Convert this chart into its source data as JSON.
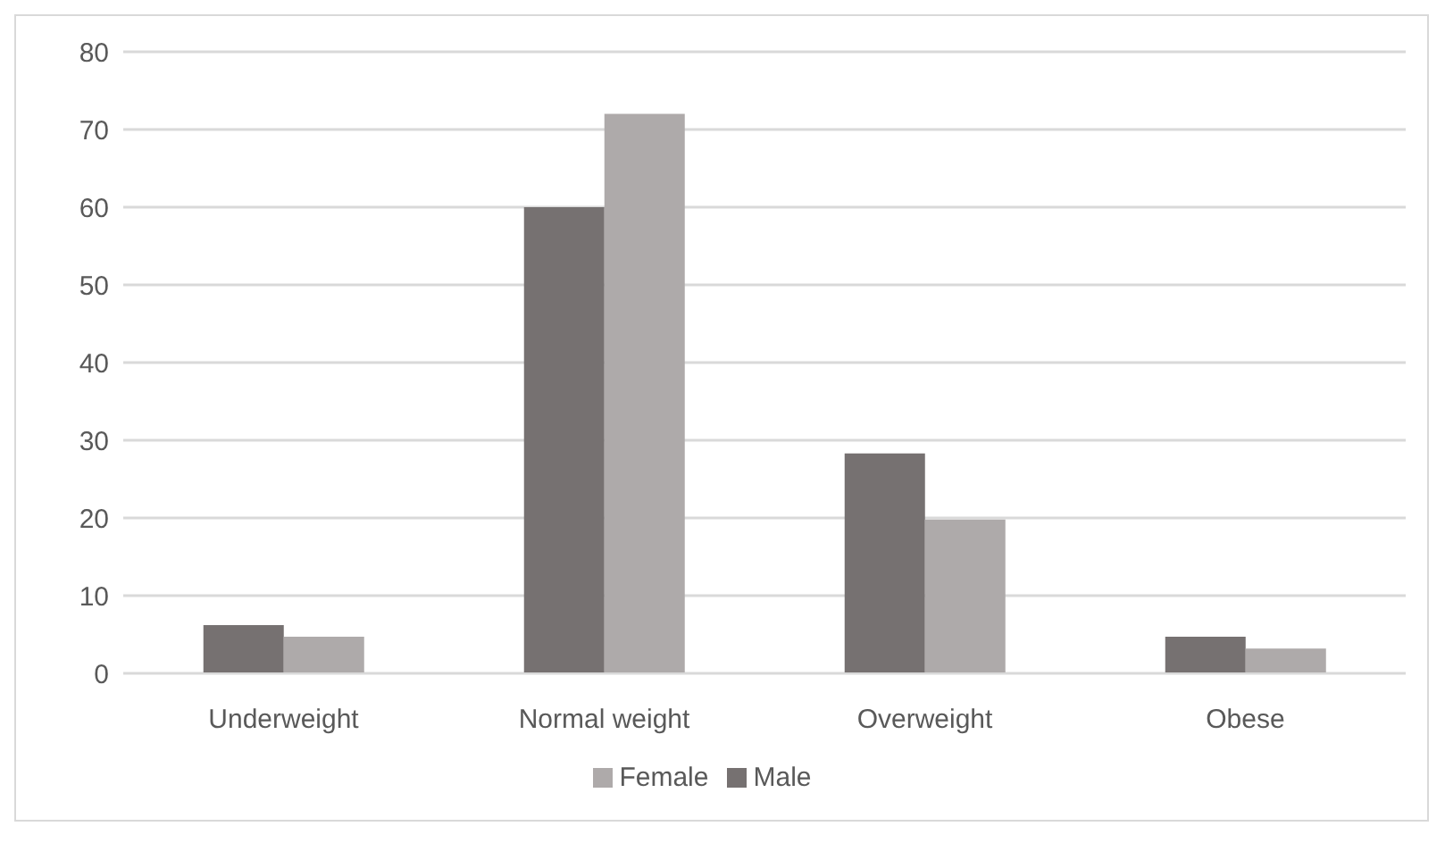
{
  "chart_data": {
    "type": "bar",
    "categories": [
      "Underweight",
      "Normal weight",
      "Overweight",
      "Obese"
    ],
    "series": [
      {
        "name": "Male",
        "color": "#767171",
        "values": [
          6.2,
          60,
          28.3,
          4.7
        ]
      },
      {
        "name": "Female",
        "color": "#aeaaaa",
        "values": [
          4.7,
          72,
          19.8,
          3.2
        ]
      }
    ],
    "ylim": [
      0,
      80
    ],
    "yticks": [
      0,
      10,
      20,
      30,
      40,
      50,
      60,
      70,
      80
    ],
    "grid": "y",
    "legend": "bottom"
  }
}
